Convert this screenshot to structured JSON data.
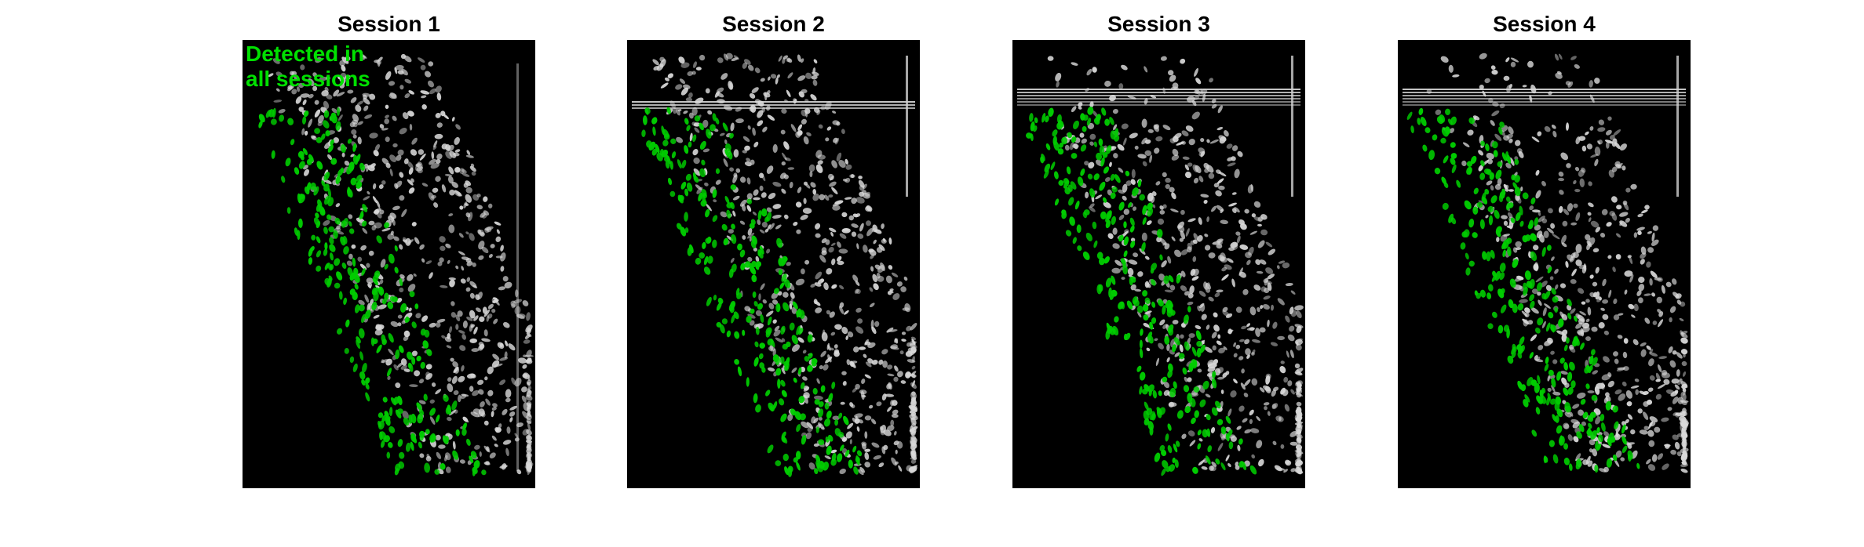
{
  "panels": [
    {
      "title": "Session 1"
    },
    {
      "title": "Session 2"
    },
    {
      "title": "Session 3"
    },
    {
      "title": "Session 4"
    }
  ],
  "legend": {
    "label": "Detected in all sessions"
  },
  "colors": {
    "background": "#ffffff",
    "image_background": "#000000",
    "detected_cells": "#00cc00",
    "other_cells": "#d9d9d9"
  }
}
